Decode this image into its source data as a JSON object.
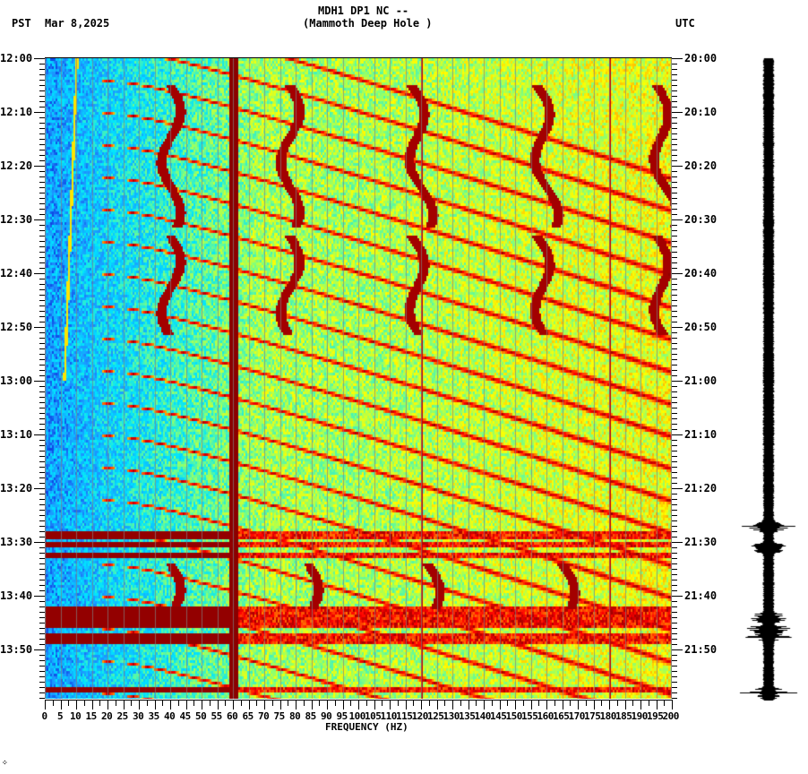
{
  "header": {
    "station": "MDH1 DP1 NC --",
    "location": "(Mammoth Deep Hole )",
    "left_tz": "PST",
    "date": "Mar 8,2025",
    "right_tz": "UTC"
  },
  "footer": {
    "mark": "⁘"
  },
  "chart_data": {
    "type": "heatmap",
    "title": "MDH1 DP1 NC -- (Mammoth Deep Hole )",
    "subtitle": "Mar 8,2025",
    "xlabel": "FREQUENCY (HZ)",
    "ylabel_left": "PST",
    "ylabel_right": "UTC",
    "xlim": [
      0,
      200
    ],
    "x_ticks": [
      0,
      5,
      10,
      15,
      20,
      25,
      30,
      35,
      40,
      45,
      50,
      55,
      60,
      65,
      70,
      75,
      80,
      85,
      90,
      95,
      100,
      105,
      110,
      115,
      120,
      125,
      130,
      135,
      140,
      145,
      150,
      155,
      160,
      165,
      170,
      175,
      180,
      185,
      190,
      195,
      200
    ],
    "y_ticks_left": [
      "12:00",
      "12:10",
      "12:20",
      "12:30",
      "12:40",
      "12:50",
      "13:00",
      "13:10",
      "13:20",
      "13:30",
      "13:40",
      "13:50"
    ],
    "y_ticks_right": [
      "20:00",
      "20:10",
      "20:20",
      "20:30",
      "20:40",
      "20:50",
      "21:00",
      "21:10",
      "21:20",
      "21:30",
      "21:40",
      "21:50"
    ],
    "time_range_minutes": [
      0,
      119
    ],
    "colormap": [
      "#0000cc",
      "#1e90ff",
      "#00e5ff",
      "#7fff7f",
      "#ffff00",
      "#ff8000",
      "#ff0000",
      "#8b0000"
    ],
    "persistent_lines_hz": [
      60,
      120,
      180
    ],
    "gridlines_hz": "every 5 Hz (gray)",
    "features": [
      {
        "type": "sweep",
        "desc": "gliding harmonics, recurring ~every 6 min, rising from ~20 Hz to >200 Hz"
      },
      {
        "type": "wander",
        "center_hz": [
          40,
          78,
          117,
          157,
          195
        ],
        "minutes": [
          [
            5,
            31
          ],
          [
            33,
            51
          ]
        ]
      },
      {
        "type": "wander",
        "center_hz": [
          40,
          84,
          122,
          165
        ],
        "minutes": [
          [
            94,
            102
          ]
        ]
      },
      {
        "type": "broadband_burst",
        "minutes": [
          104,
          106,
          107.5
        ]
      },
      {
        "type": "drifting_line",
        "hz_start": 10,
        "hz_end": 6,
        "minutes": [
          0,
          60
        ]
      }
    ],
    "seismogram": {
      "events_minutes": [
        87,
        91,
        104,
        106,
        107.5,
        118
      ]
    }
  }
}
